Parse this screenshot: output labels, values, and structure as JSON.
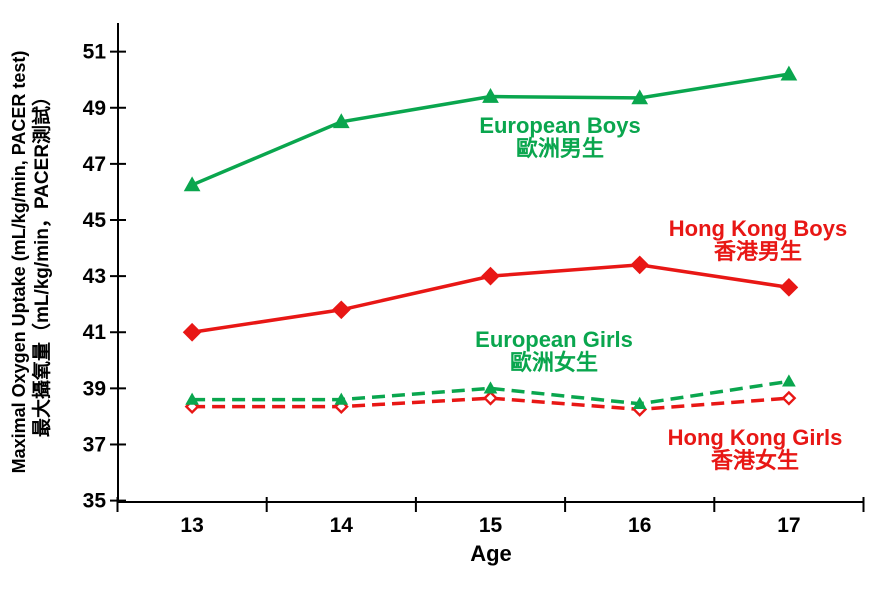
{
  "chart_data": {
    "type": "line",
    "xlabel": "Age",
    "ylabel_en": "Maximal Oxygen Uptake (mL/kg/min, PACER test)",
    "ylabel_zh": "最大攝氧量（mL/kg/min，PACER測試）",
    "x": [
      13,
      14,
      15,
      16,
      17
    ],
    "ylim": [
      35,
      52
    ],
    "y_ticks": [
      35,
      37,
      39,
      41,
      43,
      45,
      47,
      49,
      51
    ],
    "grid": false,
    "legend_position": "inline-annotations",
    "axis_color": "#000000",
    "series": [
      {
        "name": "European Boys",
        "name_zh": "歐洲男生",
        "color": "#0AA64E",
        "line": "solid",
        "marker": "triangle",
        "marker_size": 7.5,
        "values": [
          46.25,
          48.5,
          49.4,
          49.35,
          50.2
        ]
      },
      {
        "name": "Hong Kong Boys",
        "name_zh": "香港男生",
        "color": "#E81715",
        "line": "solid",
        "marker": "diamond",
        "marker_size": 7.5,
        "values": [
          41.0,
          41.8,
          43.0,
          43.4,
          42.6
        ]
      },
      {
        "name": "European Girls",
        "name_zh": "歐洲女生",
        "color": "#0AA64E",
        "line": "dashed",
        "marker": "triangle",
        "marker_size": 6,
        "values": [
          38.6,
          38.6,
          39.0,
          38.45,
          39.25
        ]
      },
      {
        "name": "Hong Kong Girls",
        "name_zh": "香港女生",
        "color": "#E81715",
        "line": "dashed",
        "marker": "diamond-open",
        "marker_size": 5,
        "values": [
          38.35,
          38.35,
          38.65,
          38.25,
          38.65
        ]
      }
    ]
  }
}
